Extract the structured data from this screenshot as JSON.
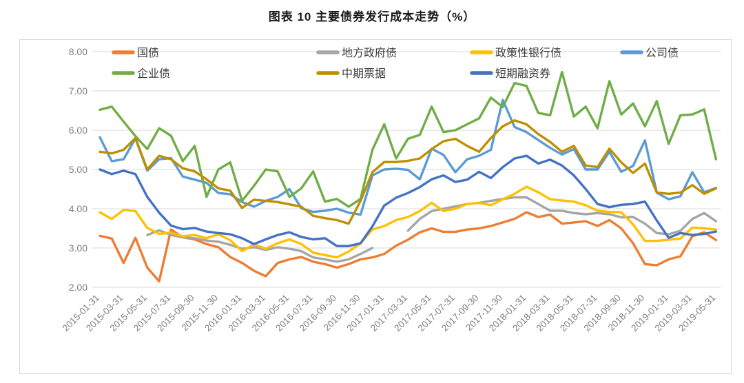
{
  "page": {
    "title": "图表 10 主要债券发行成本走势（%）"
  },
  "chart_data": {
    "type": "line",
    "title": "图表 10 主要债券发行成本走势（%）",
    "xlabel": "",
    "ylabel": "",
    "unit": "%",
    "x_frequency": "monthly",
    "x_range": [
      "2015-01-31",
      "2019-05-31"
    ],
    "x_point_count": 53,
    "x_tick_labels": [
      "2015-01-31",
      "2015-03-31",
      "2015-05-31",
      "2015-07-31",
      "2015-09-30",
      "2015-11-30",
      "2016-01-31",
      "2016-03-31",
      "2016-05-31",
      "2016-07-31",
      "2016-09-30",
      "2016-11-30",
      "2017-01-31",
      "2017-03-31",
      "2017-05-31",
      "2017-07-31",
      "2017-09-30",
      "2017-11-30",
      "2018-01-31",
      "2018-03-31",
      "2018-05-31",
      "2018-07-31",
      "2018-09-30",
      "2018-11-30",
      "2019-01-31",
      "2019-03-31",
      "2019-05-31"
    ],
    "ylim": [
      2,
      8
    ],
    "y_tick_labels": [
      "8.00",
      "7.00",
      "6.00",
      "5.00",
      "4.00",
      "3.00",
      "2.00"
    ],
    "grid": true,
    "grid_color": "#d9d9d9",
    "axis_text_color": "#7f7f7f",
    "frame_border_color": "#d9d9d9",
    "legend_position": "top",
    "legend_rows": [
      [
        "treasury",
        "local-gov",
        "policy-bank",
        "corporate"
      ],
      [
        "enterprise",
        "mtn",
        "scp"
      ]
    ],
    "series": [
      {
        "key": "treasury",
        "name": "国债",
        "color": "#ED7D31",
        "values": [
          3.31,
          3.24,
          2.62,
          3.26,
          2.5,
          2.15,
          3.47,
          3.27,
          3.22,
          3.1,
          3.02,
          2.77,
          2.62,
          2.42,
          2.28,
          2.62,
          2.71,
          2.77,
          2.65,
          2.59,
          2.5,
          2.59,
          2.71,
          2.76,
          2.85,
          3.06,
          3.21,
          3.4,
          3.5,
          3.41,
          3.41,
          3.47,
          3.5,
          3.56,
          3.65,
          3.74,
          3.91,
          3.79,
          3.85,
          3.62,
          3.65,
          3.68,
          3.56,
          3.71,
          3.5,
          3.12,
          2.59,
          2.56,
          2.71,
          2.79,
          3.3,
          3.4,
          3.2
        ]
      },
      {
        "key": "local-gov",
        "name": "地方政府债",
        "color": "#A5A5A5",
        "values": [
          null,
          null,
          null,
          null,
          3.33,
          3.45,
          3.33,
          3.27,
          3.25,
          3.19,
          3.16,
          3.08,
          2.98,
          3.02,
          2.95,
          3.02,
          2.98,
          2.92,
          2.76,
          2.71,
          2.65,
          2.71,
          2.85,
          3.0,
          null,
          null,
          3.44,
          3.74,
          3.94,
          4.0,
          4.06,
          4.12,
          4.15,
          4.2,
          4.25,
          4.29,
          4.29,
          4.12,
          3.95,
          3.95,
          3.89,
          3.86,
          3.89,
          3.86,
          3.78,
          3.79,
          3.62,
          3.38,
          3.35,
          3.44,
          3.74,
          3.89,
          3.68
        ]
      },
      {
        "key": "policy-bank",
        "name": "政策性银行债",
        "color": "#FFC000",
        "values": [
          3.91,
          3.74,
          3.97,
          3.94,
          3.51,
          3.36,
          3.39,
          3.3,
          3.33,
          3.25,
          3.35,
          3.2,
          2.92,
          3.09,
          2.98,
          3.12,
          3.22,
          3.1,
          2.88,
          2.82,
          2.76,
          2.91,
          3.12,
          3.47,
          3.56,
          3.71,
          3.79,
          3.94,
          4.15,
          3.94,
          4.0,
          4.12,
          4.15,
          4.09,
          4.24,
          4.38,
          4.56,
          4.42,
          4.24,
          4.21,
          4.18,
          4.09,
          3.95,
          3.92,
          3.91,
          3.6,
          3.18,
          3.18,
          3.21,
          3.24,
          3.52,
          3.5,
          3.47
        ]
      },
      {
        "key": "corporate",
        "name": "公司债",
        "color": "#5B9BD5",
        "values": [
          5.82,
          5.21,
          5.26,
          5.79,
          4.97,
          5.26,
          5.29,
          4.82,
          4.74,
          4.66,
          4.4,
          4.37,
          4.17,
          4.05,
          4.2,
          4.3,
          4.5,
          4.01,
          3.92,
          3.95,
          4.0,
          3.9,
          3.85,
          4.85,
          5.0,
          5.02,
          4.99,
          4.75,
          5.53,
          5.37,
          4.93,
          5.26,
          5.35,
          5.5,
          6.77,
          6.08,
          5.95,
          5.75,
          5.55,
          5.38,
          5.52,
          5.0,
          5.0,
          5.45,
          4.94,
          5.09,
          5.74,
          4.41,
          4.24,
          4.32,
          4.93,
          4.42,
          4.53
        ]
      },
      {
        "key": "enterprise",
        "name": "企业债",
        "color": "#70AD47",
        "values": [
          6.52,
          6.6,
          6.22,
          5.85,
          5.52,
          6.05,
          5.86,
          5.21,
          5.6,
          4.3,
          5.0,
          5.18,
          4.2,
          4.58,
          5.0,
          4.95,
          4.3,
          4.52,
          4.95,
          4.18,
          4.25,
          4.05,
          4.25,
          5.5,
          6.15,
          5.28,
          5.78,
          5.88,
          6.6,
          5.95,
          6.0,
          6.15,
          6.3,
          6.83,
          6.59,
          7.2,
          7.13,
          6.44,
          6.38,
          7.48,
          6.35,
          6.6,
          6.05,
          7.25,
          6.4,
          6.68,
          6.1,
          6.74,
          5.65,
          6.38,
          6.4,
          6.53,
          5.26
        ]
      },
      {
        "key": "mtn",
        "name": "中期票据",
        "color": "#BF8F00",
        "values": [
          5.45,
          5.41,
          5.5,
          5.8,
          5.0,
          5.35,
          5.26,
          5.03,
          4.95,
          4.75,
          4.52,
          4.46,
          4.02,
          4.23,
          4.2,
          4.17,
          4.11,
          4.05,
          3.82,
          3.76,
          3.71,
          3.62,
          4.2,
          4.93,
          5.19,
          5.19,
          5.22,
          5.28,
          5.52,
          5.72,
          5.78,
          5.6,
          5.45,
          5.8,
          6.1,
          6.25,
          6.15,
          5.9,
          5.7,
          5.45,
          5.6,
          5.1,
          5.06,
          5.53,
          5.18,
          4.91,
          5.15,
          4.41,
          4.38,
          4.41,
          4.6,
          4.38,
          4.52
        ]
      },
      {
        "key": "scp",
        "name": "短期融资券",
        "color": "#4472C4",
        "values": [
          5.0,
          4.88,
          4.97,
          4.88,
          4.3,
          3.9,
          3.57,
          3.48,
          3.51,
          3.42,
          3.38,
          3.35,
          3.25,
          3.1,
          3.22,
          3.33,
          3.4,
          3.28,
          3.22,
          3.25,
          3.05,
          3.05,
          3.12,
          3.55,
          4.08,
          4.28,
          4.4,
          4.55,
          4.75,
          4.85,
          4.68,
          4.74,
          4.94,
          4.78,
          5.06,
          5.28,
          5.35,
          5.15,
          5.25,
          5.1,
          4.85,
          4.5,
          4.12,
          4.04,
          4.1,
          4.12,
          4.18,
          3.7,
          3.26,
          3.38,
          3.33,
          3.36,
          3.42
        ]
      }
    ]
  }
}
